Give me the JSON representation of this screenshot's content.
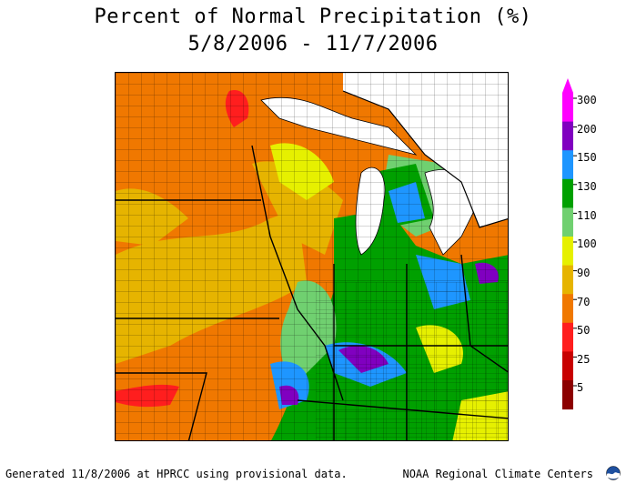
{
  "title": "Percent of Normal Precipitation (%)",
  "date_range": "5/8/2006 - 11/7/2006",
  "legend": {
    "levels": [
      {
        "label": "300",
        "color": "#ff00ff"
      },
      {
        "label": "200",
        "color": "#8000c0"
      },
      {
        "label": "150",
        "color": "#1e96ff"
      },
      {
        "label": "130",
        "color": "#00a000"
      },
      {
        "label": "110",
        "color": "#70d070"
      },
      {
        "label": "100",
        "color": "#e6f000"
      },
      {
        "label": "90",
        "color": "#e6b400"
      },
      {
        "label": "70",
        "color": "#f07800"
      },
      {
        "label": "50",
        "color": "#ff1e1e"
      },
      {
        "label": "25",
        "color": "#c80000"
      },
      {
        "label": "5",
        "color": "#8c0000"
      }
    ]
  },
  "footer": {
    "left": "Generated 11/8/2006 at HPRCC using provisional data.",
    "right": "NOAA Regional Climate Centers"
  },
  "icons": [
    "noaa-logo-icon"
  ]
}
